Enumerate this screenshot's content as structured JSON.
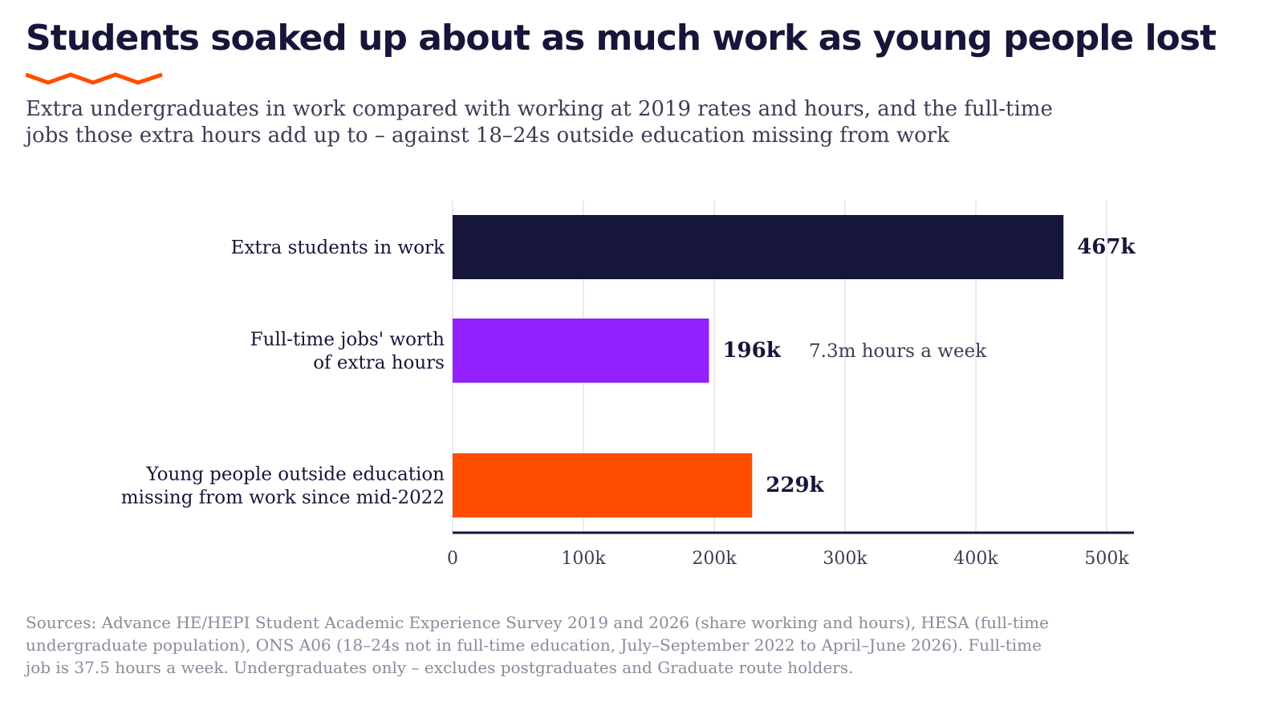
{
  "title": "Students soaked up about as much work as young people lost",
  "subtitle": "Extra undergraduates in work compared with working at 2019 rates and hours, and the full-time jobs those extra hours add up to – against 18–24s outside education missing from work",
  "colors": {
    "navy": "#16163a",
    "purple": "#9320ff",
    "orange": "#ff4d00",
    "grid": "#e3e3ea",
    "muted": "#3d3d55",
    "source": "#8a8a9c"
  },
  "chart_data": {
    "type": "bar",
    "orientation": "horizontal",
    "categories": [
      [
        "Extra students in work"
      ],
      [
        "Full-time jobs' worth",
        "of extra hours"
      ],
      [
        "Young people outside education",
        "missing from work since mid-2022"
      ]
    ],
    "values": [
      467,
      196,
      229
    ],
    "value_labels": [
      "467k",
      "196k",
      "229k"
    ],
    "bar_colors": [
      "#16163a",
      "#9320ff",
      "#ff4d00"
    ],
    "annotations": [
      {
        "bar": 1,
        "text": "7.3m hours a week"
      }
    ],
    "xlim": [
      0,
      520
    ],
    "xticks": [
      0,
      100,
      200,
      300,
      400,
      500
    ],
    "xtick_labels": [
      "0",
      "100k",
      "200k",
      "300k",
      "400k",
      "500k"
    ],
    "grid": true
  },
  "source": "Sources: Advance HE/HEPI Student Academic Experience Survey 2019 and 2026 (share working and hours), HESA (full-time undergraduate population), ONS A06 (18–24s not in full-time education, July–September 2022 to April–June 2026). Full-time job is 37.5 hours a week. Undergraduates only – excludes postgraduates and Graduate route holders."
}
